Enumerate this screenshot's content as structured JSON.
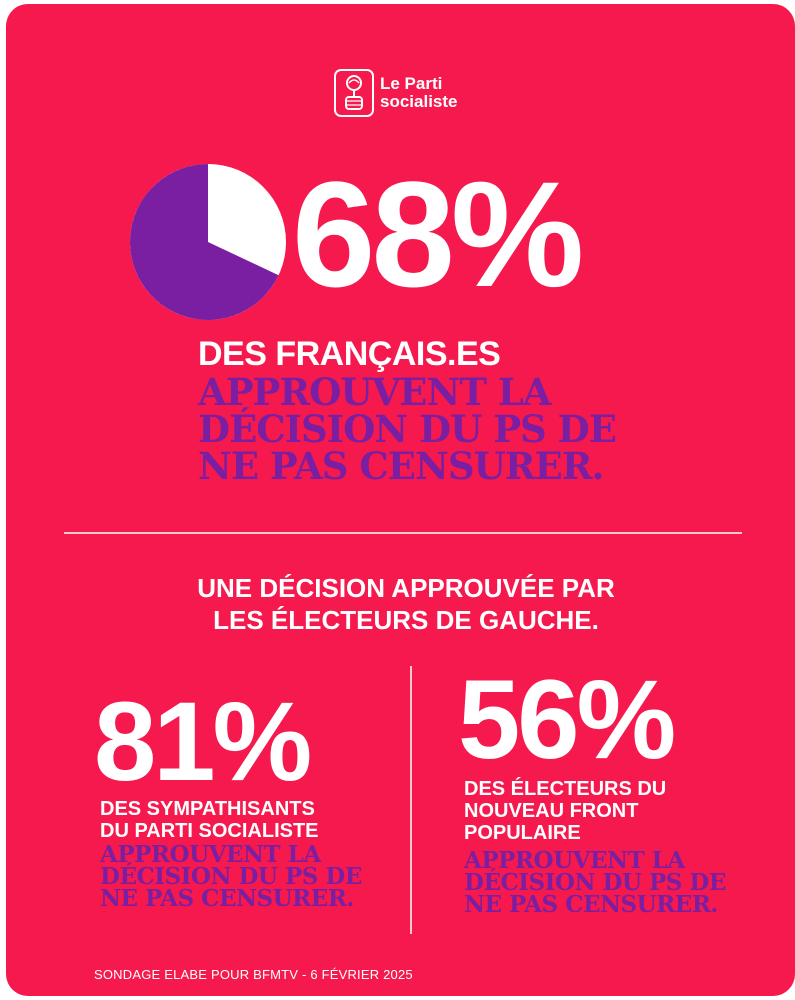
{
  "logo": {
    "line1": "Le Parti",
    "line2": "socialiste"
  },
  "headline": {
    "percent": "68%",
    "subtitle": "DES FRANÇAIS.ES",
    "statement_lines": [
      "APPROUVENT LA",
      "DÉCISION DU PS DE",
      "NE PAS CENSURER."
    ],
    "pie_fraction": 0.68
  },
  "section": {
    "title_lines": [
      "UNE DÉCISION APPROUVÉE PAR",
      "LES ÉLECTEURS DE GAUCHE."
    ]
  },
  "stats": [
    {
      "percent": "81%",
      "label_lines": [
        "DES SYMPATHISANTS",
        "DU PARTI SOCIALISTE"
      ],
      "statement_lines": [
        "APPROUVENT LA",
        "DÉCISION DU PS DE",
        "NE PAS CENSURER."
      ]
    },
    {
      "percent": "56%",
      "label_lines": [
        "DES ÉLECTEURS DU",
        "NOUVEAU FRONT",
        "POPULAIRE"
      ],
      "statement_lines": [
        "APPROUVENT LA",
        "DÉCISION DU PS DE",
        "NE PAS CENSURER."
      ]
    }
  ],
  "source": "SONDAGE ELABE POUR BFMTV - 6 FÉVRIER 2025",
  "colors": {
    "background": "#f5194e",
    "purple": "#7b1fa2",
    "white": "#ffffff"
  }
}
